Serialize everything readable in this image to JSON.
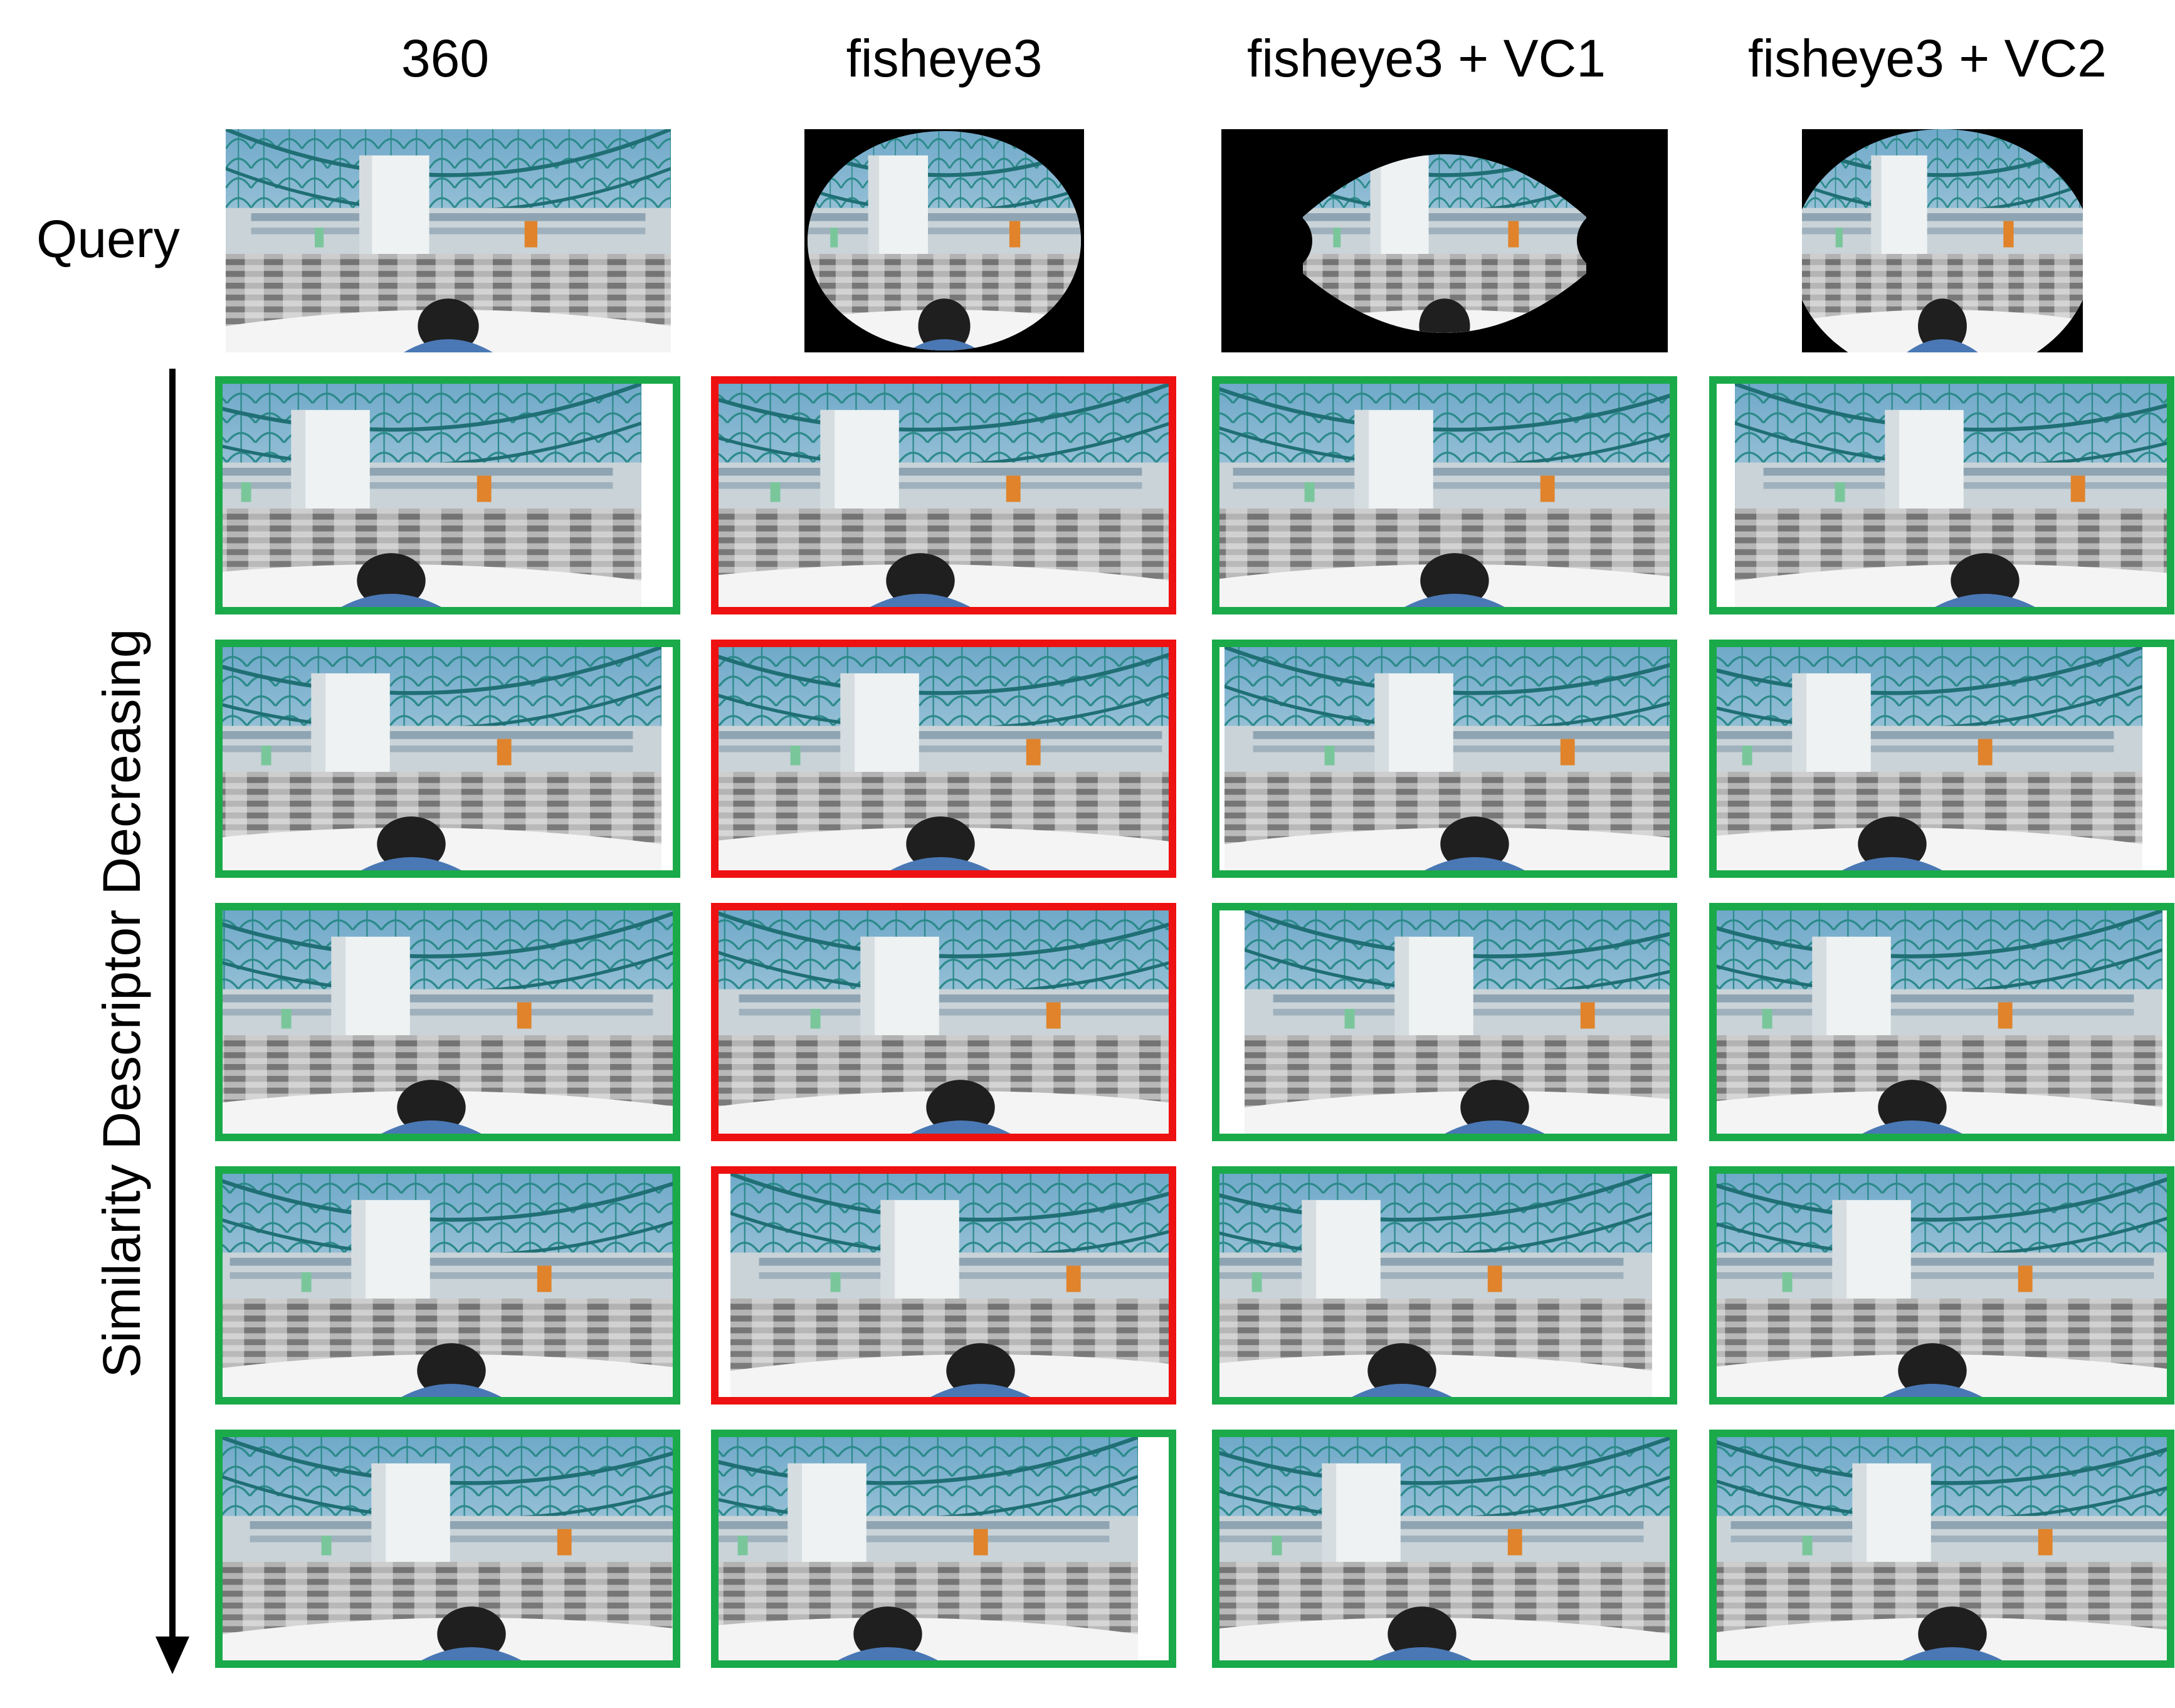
{
  "columns": [
    {
      "label": "360",
      "query_shape": "panorama"
    },
    {
      "label": "fisheye3",
      "query_shape": "fisheye"
    },
    {
      "label": "fisheye3 + VC1",
      "query_shape": "fisheye-vc1"
    },
    {
      "label": "fisheye3 + VC2",
      "query_shape": "fisheye-vc2"
    }
  ],
  "row_label": "Query",
  "axis_label": "Similarity   Descriptor   Decreasing",
  "legend_colors": {
    "correct": "#1aaa4a",
    "incorrect": "#ee1111"
  },
  "results": [
    [
      "correct",
      "incorrect",
      "correct",
      "correct"
    ],
    [
      "correct",
      "incorrect",
      "correct",
      "correct"
    ],
    [
      "correct",
      "incorrect",
      "correct",
      "correct"
    ],
    [
      "correct",
      "incorrect",
      "correct",
      "correct"
    ],
    [
      "correct",
      "correct",
      "correct",
      "correct"
    ]
  ]
}
